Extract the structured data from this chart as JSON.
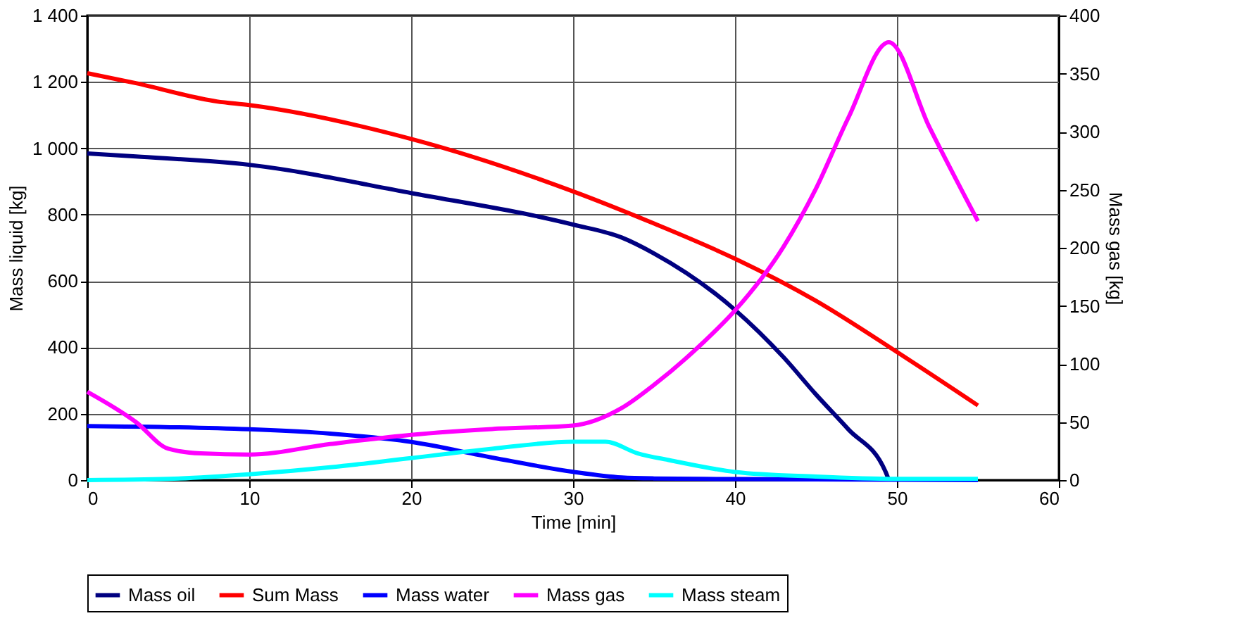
{
  "chart_data": {
    "type": "line",
    "xlabel": "Time [min]",
    "ylabel": "Mass liquid [kg]",
    "y2label": "Mass gas [kg]",
    "xlim": [
      0,
      60
    ],
    "xticks": [
      0,
      10,
      20,
      30,
      40,
      50,
      60
    ],
    "ylim": [
      0,
      1400
    ],
    "yticks": [
      0,
      200,
      400,
      600,
      800,
      {
        "value": 1000,
        "label": "1 000"
      },
      {
        "value": 1200,
        "label": "1 200"
      },
      {
        "value": 1400,
        "label": "1 400"
      }
    ],
    "y2lim": [
      0,
      400
    ],
    "y2ticks": [
      0,
      50,
      100,
      150,
      200,
      250,
      300,
      350,
      400
    ],
    "grid": true,
    "legend": "bottom",
    "line_style": "solid",
    "series": [
      {
        "name": "Mass oil",
        "color": "#000080",
        "x": [
          0,
          3,
          10,
          20,
          30,
          33,
          35,
          40,
          43,
          45,
          47,
          49.3,
          49.5
        ],
        "values": [
          984,
          975,
          950,
          865,
          770,
          731,
          683,
          513,
          370,
          258,
          153,
          25,
          0
        ]
      },
      {
        "name": "Sum Mass",
        "color": "#ff0000",
        "x": [
          0,
          3,
          8,
          10,
          20,
          30,
          35,
          40,
          45,
          50,
          55
        ],
        "values": [
          1226,
          1196,
          1141,
          1130,
          1028,
          870,
          773,
          667,
          540,
          386,
          225
        ]
      },
      {
        "name": "Mass water",
        "color": "#0000ff",
        "x": [
          0,
          10,
          15,
          20,
          25,
          30,
          33,
          35,
          40,
          55
        ],
        "values": [
          163,
          153,
          140,
          115,
          68,
          25,
          8,
          5,
          3,
          0
        ]
      },
      {
        "name": "Mass gas",
        "color": "#ff00ff",
        "axis": "y2",
        "x": [
          0,
          3,
          5,
          7,
          10,
          15,
          20,
          25,
          30,
          33,
          35,
          38,
          40,
          43,
          45,
          47,
          49.5,
          52,
          55
        ],
        "values": [
          76,
          50,
          27,
          23,
          22,
          31,
          39,
          44,
          47,
          62,
          82,
          118,
          146,
          201,
          251,
          312,
          377,
          304,
          223
        ]
      },
      {
        "name": "Mass steam",
        "color": "#00ffff",
        "axis": "y2",
        "x": [
          0,
          5,
          10,
          15,
          20,
          25,
          30,
          32,
          34,
          36,
          40,
          45,
          50,
          55
        ],
        "values": [
          0,
          1,
          5,
          11,
          19,
          27,
          33,
          33,
          23,
          17,
          7,
          3,
          1,
          1
        ]
      }
    ]
  }
}
